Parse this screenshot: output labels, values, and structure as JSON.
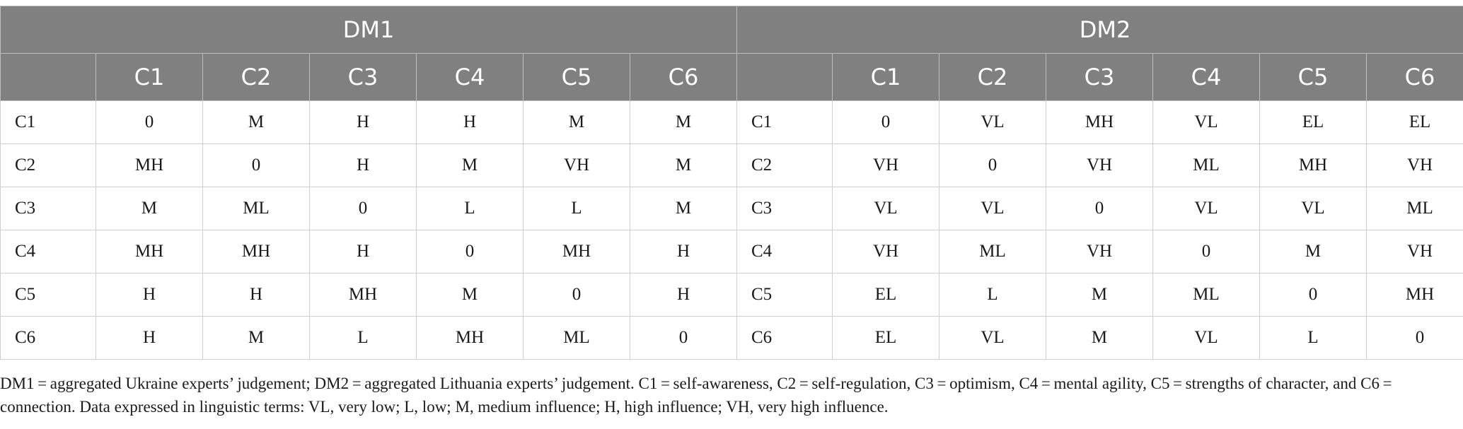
{
  "table": {
    "groups": [
      "DM1",
      "DM2"
    ],
    "columns": [
      "C1",
      "C2",
      "C3",
      "C4",
      "C5",
      "C6"
    ],
    "dm1_rows": [
      {
        "label": "C1",
        "values": [
          "0",
          "M",
          "H",
          "H",
          "M",
          "M"
        ]
      },
      {
        "label": "C2",
        "values": [
          "MH",
          "0",
          "H",
          "M",
          "VH",
          "M"
        ]
      },
      {
        "label": "C3",
        "values": [
          "M",
          "ML",
          "0",
          "L",
          "L",
          "M"
        ]
      },
      {
        "label": "C4",
        "values": [
          "MH",
          "MH",
          "H",
          "0",
          "MH",
          "H"
        ]
      },
      {
        "label": "C5",
        "values": [
          "H",
          "H",
          "MH",
          "M",
          "0",
          "H"
        ]
      },
      {
        "label": "C6",
        "values": [
          "H",
          "M",
          "L",
          "MH",
          "ML",
          "0"
        ]
      }
    ],
    "dm2_rows": [
      {
        "label": "C1",
        "values": [
          "0",
          "VL",
          "MH",
          "VL",
          "EL",
          "EL"
        ]
      },
      {
        "label": "C2",
        "values": [
          "VH",
          "0",
          "VH",
          "ML",
          "MH",
          "VH"
        ]
      },
      {
        "label": "C3",
        "values": [
          "VL",
          "VL",
          "0",
          "VL",
          "VL",
          "ML"
        ]
      },
      {
        "label": "C4",
        "values": [
          "VH",
          "ML",
          "VH",
          "0",
          "M",
          "VH"
        ]
      },
      {
        "label": "C5",
        "values": [
          "EL",
          "L",
          "M",
          "ML",
          "0",
          "MH"
        ]
      },
      {
        "label": "C6",
        "values": [
          "EL",
          "VL",
          "M",
          "VL",
          "L",
          "0"
        ]
      }
    ]
  },
  "footnote": "DM1 = aggregated Ukraine experts’ judgement; DM2 = aggregated Lithuania experts’ judgement. C1 = self-awareness, C2 = self-regulation, C3 = optimism, C4 = mental agility, C5 = strengths of character, and C6 = connection. Data expressed in linguistic terms: VL, very low; L, low; M, medium influence; H, high influence; VH, very high influence."
}
